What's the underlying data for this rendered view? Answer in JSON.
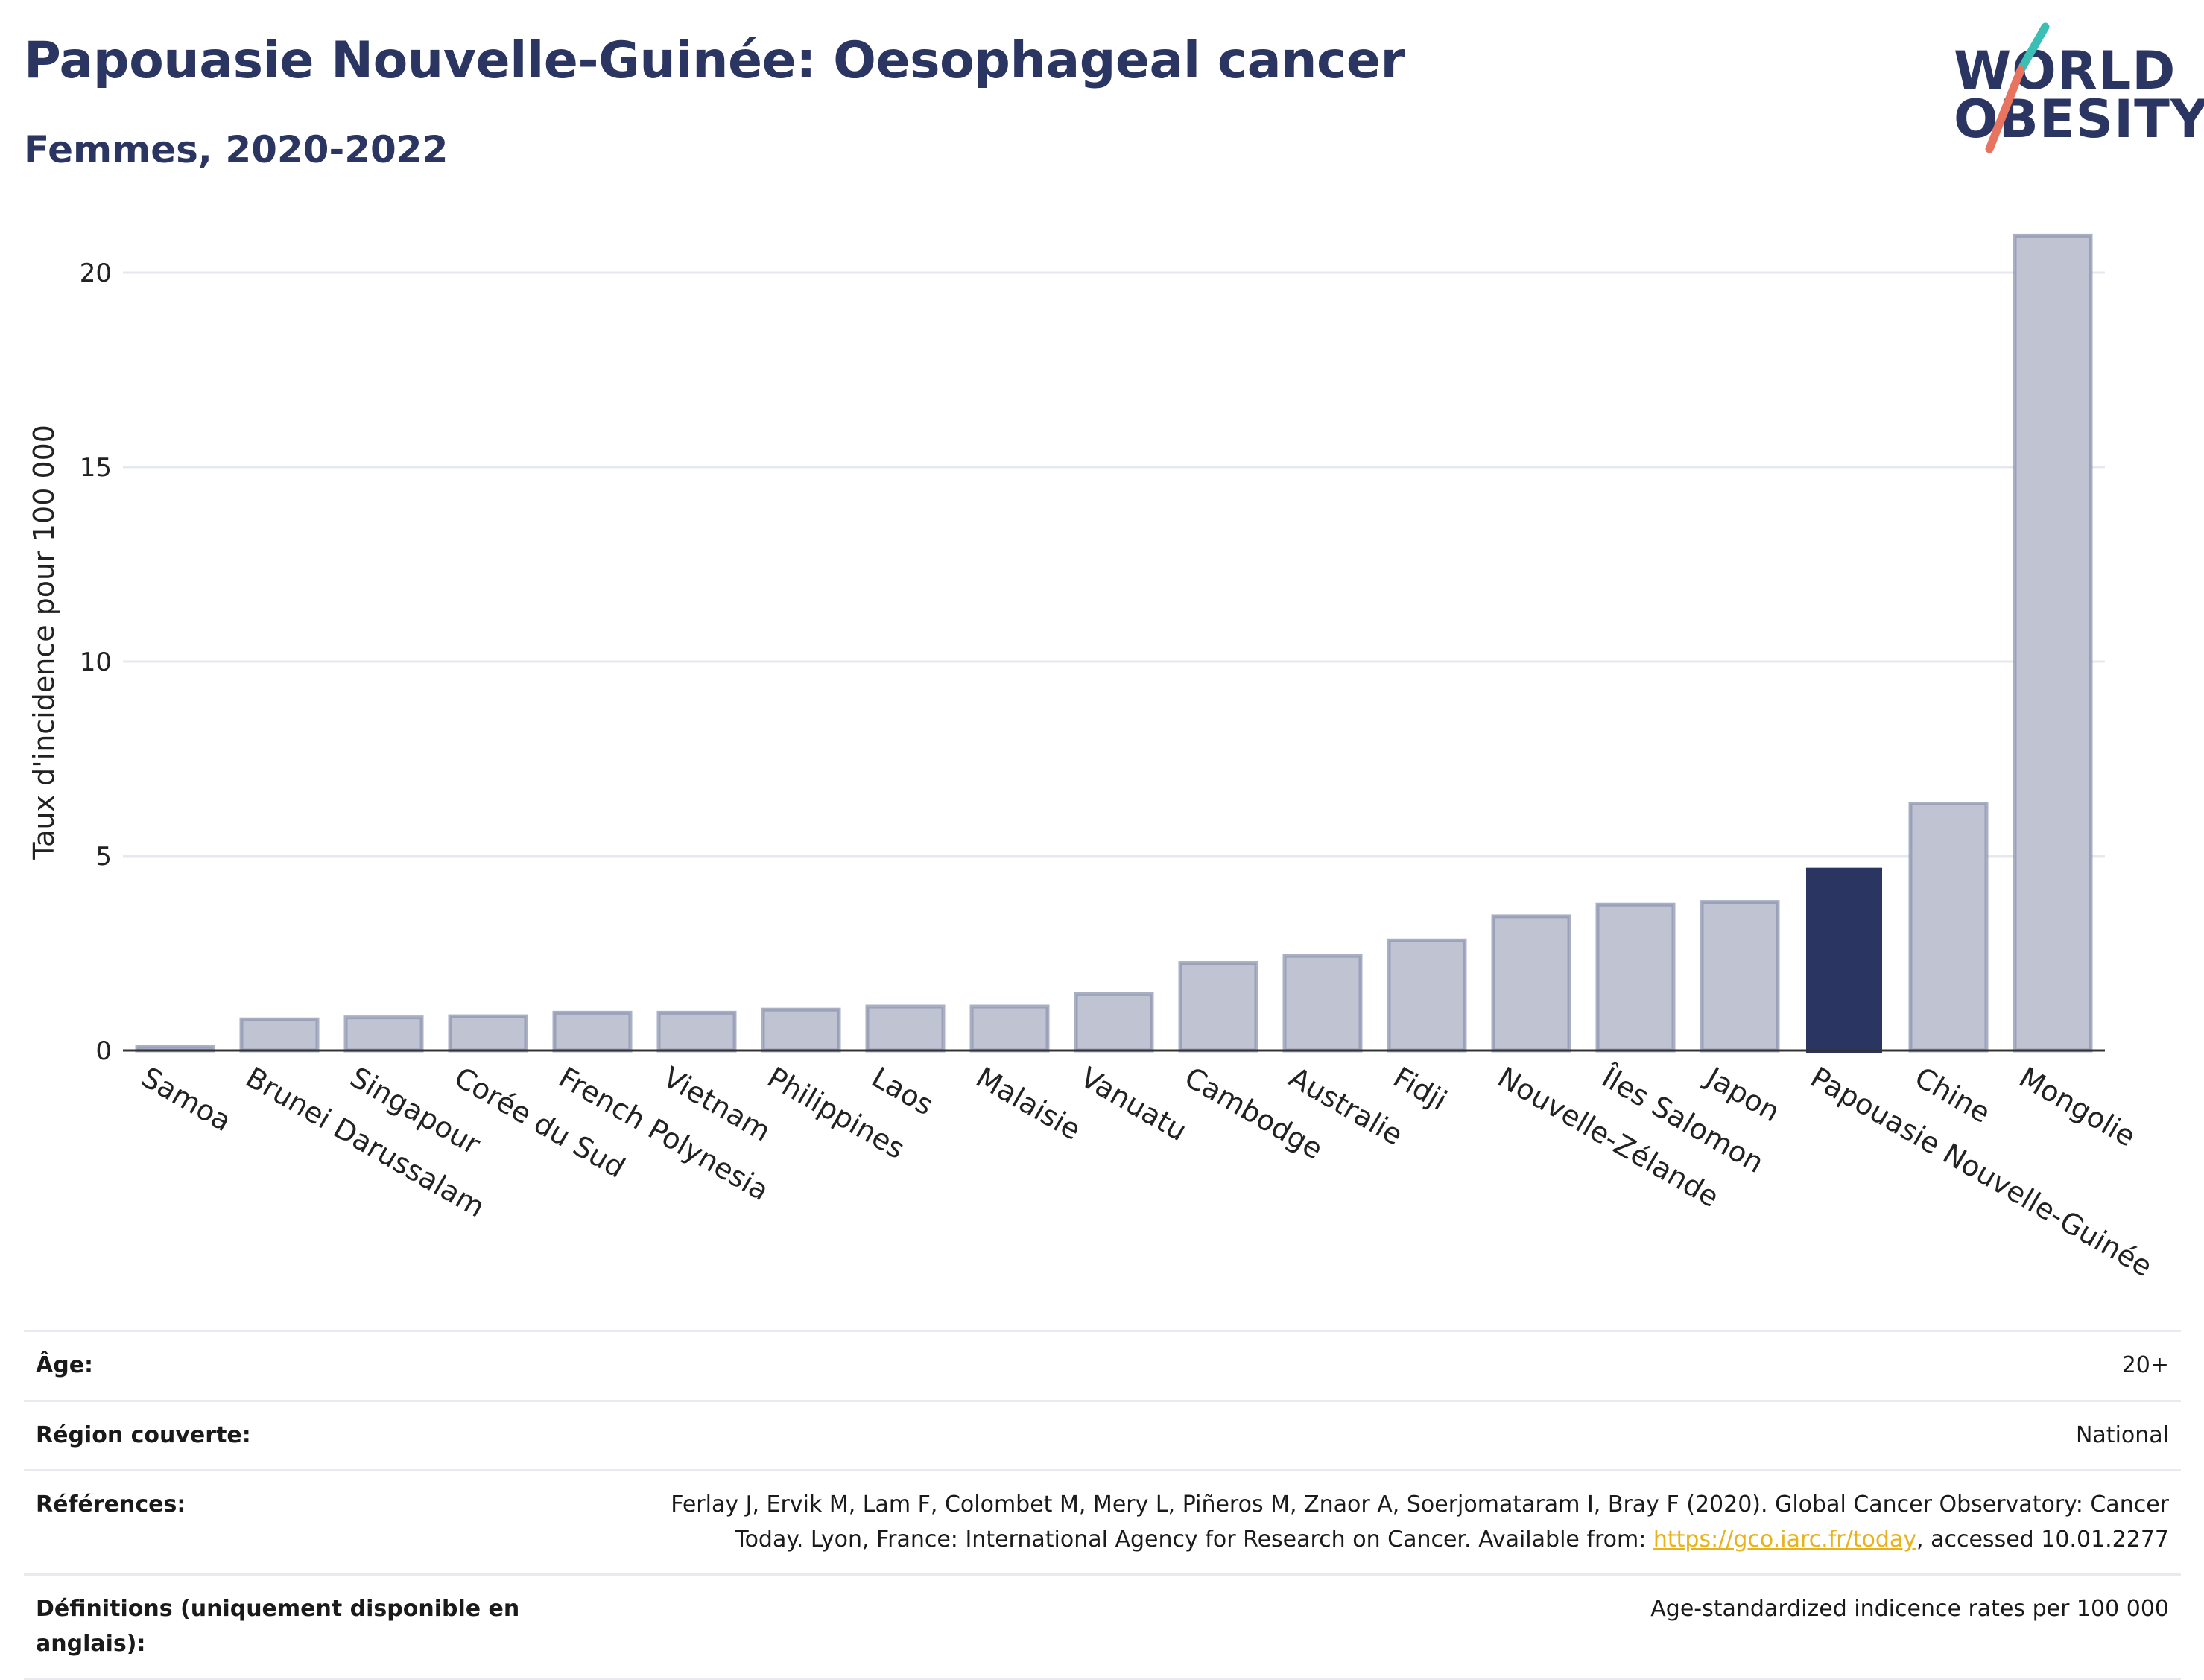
{
  "header": {
    "title": "Papouasie Nouvelle-Guinée: Oesophageal cancer",
    "subtitle": "Femmes, 2020-2022"
  },
  "logo": {
    "line1": "WORLD",
    "line2": "OBESITY"
  },
  "colors": {
    "highlight": "#2b3561",
    "bar_fill": "#c0c4d2",
    "bar_border": "#8e95b0",
    "grid": "#e6e8ef",
    "logo_teal": "#3bbfb4",
    "logo_coral": "#e8735f",
    "link": "#e8b21a"
  },
  "chart_data": {
    "type": "bar",
    "title": "Papouasie Nouvelle-Guinée: Oesophageal cancer",
    "subtitle": "Femmes, 2020-2022",
    "ylabel": "Taux d'incidence pour 100 000",
    "ylim": [
      0,
      21.5
    ],
    "yticks": [
      0,
      5,
      10,
      15,
      20
    ],
    "grid": true,
    "highlight": "Papouasie Nouvelle-Guinée",
    "categories": [
      "Samoa",
      "Brunei Darussalam",
      "Singapour",
      "Corée du Sud",
      "French Polynesia",
      "Vietnam",
      "Philippines",
      "Laos",
      "Malaisie",
      "Vanuatu",
      "Cambodge",
      "Australie",
      "Fidji",
      "Nouvelle-Zélande",
      "Îles Salomon",
      "Japon",
      "Papouasie Nouvelle-Guinée",
      "Chine",
      "Mongolie"
    ],
    "values": [
      0.1,
      0.8,
      0.85,
      0.88,
      0.97,
      0.97,
      1.05,
      1.13,
      1.13,
      1.45,
      2.25,
      2.43,
      2.83,
      3.45,
      3.75,
      3.82,
      4.7,
      6.35,
      20.95
    ]
  },
  "info": {
    "rows": [
      {
        "label": "Âge:",
        "value": "20+"
      },
      {
        "label": "Région couverte:",
        "value": "National"
      },
      {
        "label": "Références:",
        "value_line1": "Ferlay J, Ervik M, Lam F, Colombet M, Mery L, Piñeros M, Znaor A, Soerjomataram I, Bray F (2020). Global Cancer Observatory: Cancer",
        "value_line2_pre": "Today. Lyon, France: International Agency for Research on Cancer. Available from: ",
        "link": "https://gco.iarc.fr/today",
        "value_line2_post": ", accessed 10.01.2277"
      },
      {
        "label": "Définitions (uniquement disponible en anglais):",
        "value": "Age-standardized indicence rates per 100 000"
      }
    ]
  }
}
